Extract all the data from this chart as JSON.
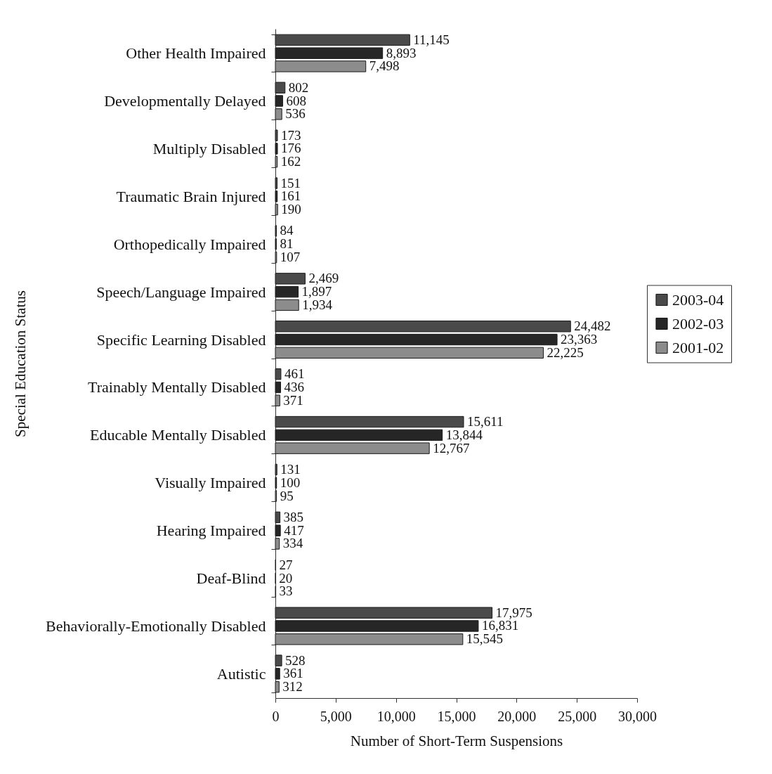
{
  "chart_data": {
    "type": "bar",
    "orientation": "horizontal",
    "ylabel": "Special Education Status",
    "xlabel": "Number of Short-Term Suspensions",
    "categories": [
      "Other Health Impaired",
      "Developmentally Delayed",
      "Multiply Disabled",
      "Traumatic Brain Injured",
      "Orthopedically Impaired",
      "Speech/Language Impaired",
      "Specific Learning Disabled",
      "Trainably Mentally Disabled",
      "Educable Mentally Disabled",
      "Visually Impaired",
      "Hearing Impaired",
      "Deaf-Blind",
      "Behaviorally-Emotionally Disabled",
      "Autistic"
    ],
    "series": [
      {
        "name": "2003-04",
        "color": "#4a4a4a",
        "values": [
          11145,
          802,
          173,
          151,
          84,
          2469,
          24482,
          461,
          15611,
          131,
          385,
          27,
          17975,
          528
        ],
        "value_labels": [
          "11,145",
          "802",
          "173",
          "151",
          "84",
          "2,469",
          "24,482",
          "461",
          "15,611",
          "131",
          "385",
          "27",
          "17,975",
          "528"
        ]
      },
      {
        "name": "2002-03",
        "color": "#262626",
        "values": [
          8893,
          608,
          176,
          161,
          81,
          1897,
          23363,
          436,
          13844,
          100,
          417,
          20,
          16831,
          361
        ],
        "value_labels": [
          "8,893",
          "608",
          "176",
          "161",
          "81",
          "1,897",
          "23,363",
          "436",
          "13,844",
          "100",
          "417",
          "20",
          "16,831",
          "361"
        ]
      },
      {
        "name": "2001-02",
        "color": "#8c8c8c",
        "values": [
          7498,
          536,
          162,
          190,
          107,
          1934,
          22225,
          371,
          12767,
          95,
          334,
          33,
          15545,
          312
        ],
        "value_labels": [
          "7,498",
          "536",
          "162",
          "190",
          "107",
          "1,934",
          "22,225",
          "371",
          "12,767",
          "95",
          "334",
          "33",
          "15,545",
          "312"
        ]
      }
    ],
    "xlim": [
      0,
      30000
    ],
    "xticks": [
      0,
      {
        "value": 5000,
        "label": "5,000"
      },
      {
        "value": 10000,
        "label": "10,000"
      },
      {
        "value": 15000,
        "label": "15,000"
      },
      {
        "value": 20000,
        "label": "20,000"
      },
      {
        "value": 25000,
        "label": "25,000"
      },
      {
        "value": 30000,
        "label": "30,000"
      }
    ],
    "legend": "right",
    "grid": false
  }
}
